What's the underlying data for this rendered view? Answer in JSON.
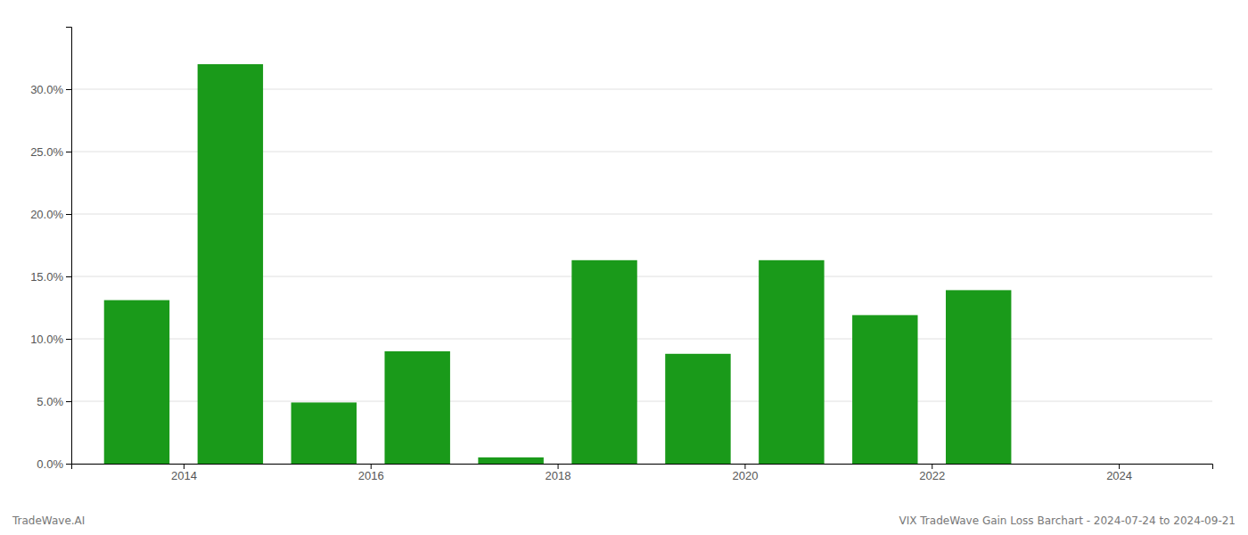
{
  "chart_data": {
    "type": "bar",
    "x": [
      2013.5,
      2014.5,
      2015.5,
      2016.5,
      2017.5,
      2018.5,
      2019.5,
      2020.5,
      2021.5,
      2022.5,
      2023.5
    ],
    "values": [
      0.131,
      0.32,
      0.049,
      0.09,
      0.005,
      0.163,
      0.088,
      0.163,
      0.119,
      0.139,
      0.0
    ],
    "color": "#1a9a1a",
    "xlim": [
      2012.8,
      2025.0
    ],
    "xticks": [
      2014,
      2016,
      2018,
      2020,
      2022,
      2024
    ],
    "ylim": [
      0,
      0.35
    ],
    "yticks": [
      {
        "value": 0.0,
        "label": "0.0%"
      },
      {
        "value": 0.05,
        "label": "5.0%"
      },
      {
        "value": 0.1,
        "label": "10.0%"
      },
      {
        "value": 0.15,
        "label": "15.0%"
      },
      {
        "value": 0.2,
        "label": "20.0%"
      },
      {
        "value": 0.25,
        "label": "25.0%"
      },
      {
        "value": 0.3,
        "label": "30.0%"
      }
    ],
    "grid": true,
    "annotations": [
      "TradeWave.AI",
      "VIX TradeWave Gain Loss Barchart - 2024-07-24 to 2024-09-21"
    ]
  }
}
